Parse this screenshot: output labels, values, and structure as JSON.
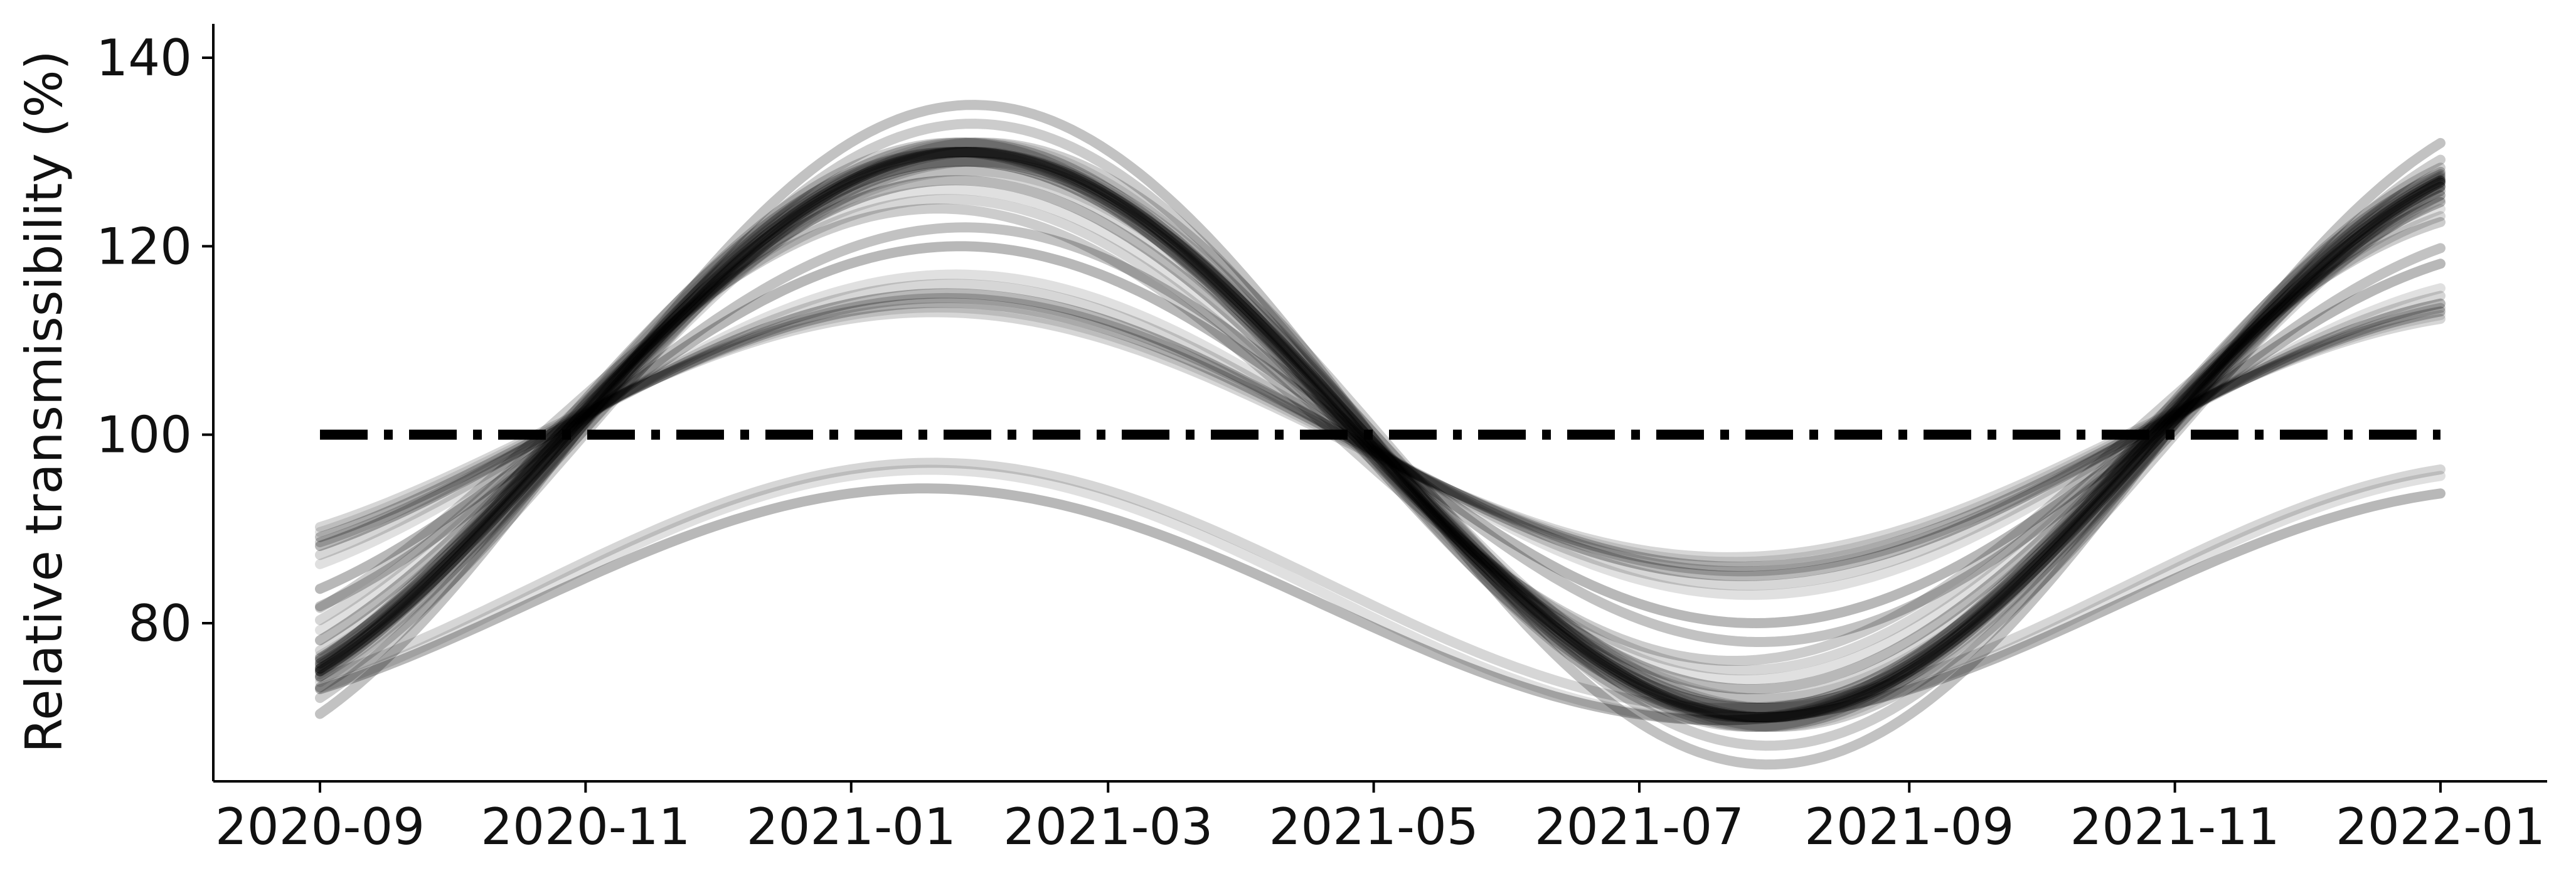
{
  "chart_data": {
    "type": "line",
    "title": "",
    "xlabel": "",
    "ylabel": "Relative transmissibility (%)",
    "x_range": [
      "2020-09-01",
      "2022-01-01"
    ],
    "ylim": [
      63,
      143
    ],
    "x_ticks": [
      "2020-09",
      "2020-11",
      "2021-01",
      "2021-03",
      "2021-05",
      "2021-07",
      "2021-09",
      "2021-11",
      "2022-01"
    ],
    "y_ticks": [
      80,
      100,
      120,
      140
    ],
    "grid": false,
    "legend": "none",
    "reference_line": {
      "y": 100,
      "style": "dash-dot",
      "color": "#000000"
    },
    "series_color": "#000000",
    "series": [
      {
        "peak_date": "2021-01-25",
        "amplitude": 0.3
      },
      {
        "peak_date": "2021-01-26",
        "amplitude": 0.29
      },
      {
        "peak_date": "2021-01-27",
        "amplitude": 0.3
      },
      {
        "peak_date": "2021-01-27",
        "amplitude": 0.31
      },
      {
        "peak_date": "2021-01-28",
        "amplitude": 0.29
      },
      {
        "peak_date": "2021-01-29",
        "amplitude": 0.3
      },
      {
        "peak_date": "2021-01-30",
        "amplitude": 0.3
      },
      {
        "peak_date": "2021-01-31",
        "amplitude": 0.31
      },
      {
        "peak_date": "2021-01-26",
        "amplitude": 0.3
      },
      {
        "peak_date": "2021-01-28",
        "amplitude": 0.3
      },
      {
        "peak_date": "2021-01-29",
        "amplitude": 0.31
      },
      {
        "peak_date": "2021-01-30",
        "amplitude": 0.29
      },
      {
        "peak_date": "2021-01-25",
        "amplitude": 0.31
      },
      {
        "peak_date": "2021-01-24",
        "amplitude": 0.3
      },
      {
        "peak_date": "2021-01-27",
        "amplitude": 0.3
      },
      {
        "peak_date": "2021-01-28",
        "amplitude": 0.28
      },
      {
        "peak_date": "2021-01-26",
        "amplitude": 0.28
      },
      {
        "peak_date": "2021-01-29",
        "amplitude": 0.33
      },
      {
        "peak_date": "2021-01-29",
        "amplitude": 0.35
      },
      {
        "peak_date": "2021-01-25",
        "amplitude": 0.27
      },
      {
        "peak_date": "2021-01-24",
        "amplitude": 0.26
      },
      {
        "peak_date": "2021-01-23",
        "amplitude": 0.25
      },
      {
        "peak_date": "2021-01-21",
        "amplitude": 0.24
      },
      {
        "peak_date": "2021-01-27",
        "amplitude": 0.22
      },
      {
        "peak_date": "2021-01-26",
        "amplitude": 0.2
      },
      {
        "peak_date": "2021-01-25",
        "amplitude": 0.17
      },
      {
        "peak_date": "2021-01-24",
        "amplitude": 0.16
      },
      {
        "peak_date": "2021-01-23",
        "amplitude": 0.145
      },
      {
        "peak_date": "2021-01-22",
        "amplitude": 0.14
      },
      {
        "peak_date": "2021-01-23",
        "amplitude": 0.15
      },
      {
        "peak_date": "2021-01-21",
        "amplitude": 0.135
      },
      {
        "peak_date": "2021-01-20",
        "amplitude": 0.13
      },
      {
        "peak_date": "2021-01-26",
        "amplitude": 0.29
      },
      {
        "peak_date": "2021-01-28",
        "amplitude": 0.3
      },
      {
        "peak_date": "2021-01-18",
        "amplitude": 0.15,
        "baseline": 0.82
      },
      {
        "peak_date": "2021-01-19",
        "amplitude": 0.16,
        "baseline": 0.83
      },
      {
        "peak_date": "2021-01-20",
        "amplitude": 0.155,
        "baseline": 0.84
      }
    ]
  }
}
